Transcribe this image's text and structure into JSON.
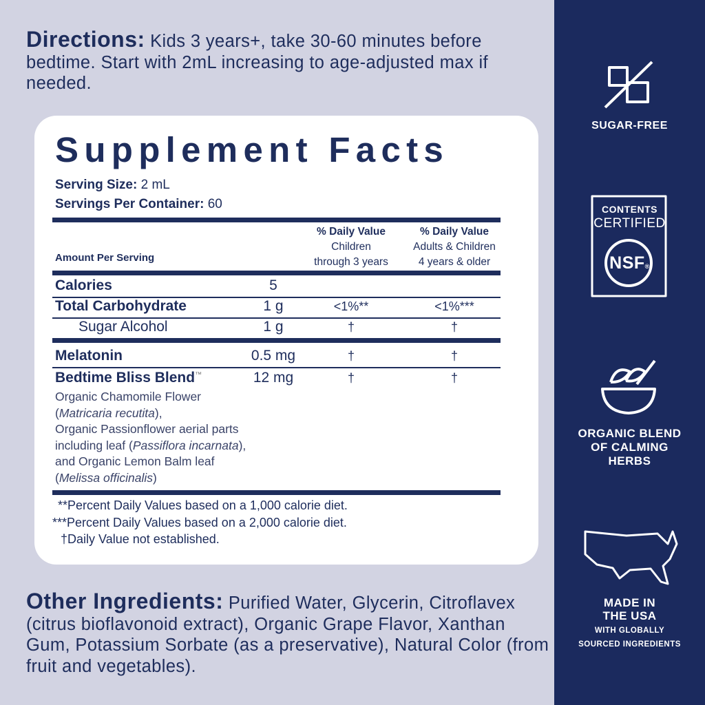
{
  "directions": {
    "label": "Directions:",
    "text": "Kids 3 years+, take 30-60 minutes before bedtime. Start with 2mL increasing to age-adjusted max if needed."
  },
  "facts": {
    "title": "Supplement Facts",
    "serving_size_label": "Serving Size:",
    "serving_size": "2 mL",
    "servings_label": "Servings Per Container:",
    "servings": "60",
    "header": {
      "amount": "Amount Per Serving",
      "col1": {
        "title": "% Daily Value",
        "line1": "Children",
        "line2": "through 3 years"
      },
      "col2": {
        "title": "% Daily Value",
        "line1": "Adults & Children",
        "line2": "4 years & older"
      }
    },
    "rows": [
      {
        "name": "Calories",
        "amount": "5"
      },
      {
        "name": "Total Carbohydrate",
        "amount": "1 g",
        "dv1": "<1%**",
        "dv2": "<1%***"
      },
      {
        "name": "Sugar Alcohol",
        "amount": "1 g",
        "dv1": "†",
        "dv2": "†"
      },
      {
        "name": "Melatonin",
        "amount": "0.5 mg",
        "dv1": "†",
        "dv2": "†"
      },
      {
        "name": "Bedtime Bliss Blend",
        "mark": "™",
        "amount": "12 mg",
        "dv1": "†",
        "dv2": "†"
      }
    ],
    "blend_lines": [
      [
        "Organic Chamomile Flower"
      ],
      [
        "(",
        "Matricaria recutita",
        "),"
      ],
      [
        "Organic Passionflower aerial parts"
      ],
      [
        "including leaf (",
        "Passiflora incarnata",
        "),"
      ],
      [
        "and Organic Lemon Balm leaf"
      ],
      [
        "(",
        "Melissa officinalis",
        ")"
      ]
    ],
    "footnotes": [
      "**Percent Daily Values based on a 1,000 calorie diet.",
      "***Percent Daily Values based on a 2,000 calorie diet.",
      "†Daily Value not established."
    ]
  },
  "other_ingredients": {
    "label": "Other Ingredients:",
    "text": "Purified Water, Glycerin, Citroflavex (citrus bioflavonoid extract), Organic Grape Flavor, Xanthan Gum, Potassium Sorbate (as a preservative), Natural Color (from fruit and vegetables)."
  },
  "badges": {
    "sugar_free": "SUGAR-FREE",
    "nsf": {
      "line1": "CONTENTS",
      "line2": "CERTIFIED",
      "logo": "NSF",
      "reg": "®"
    },
    "organic": [
      "ORGANIC BLEND",
      "OF CALMING",
      "HERBS"
    ],
    "usa": [
      "MADE IN",
      "THE USA",
      "WITH GLOBALLY",
      "SOURCED INGREDIENTS"
    ]
  }
}
